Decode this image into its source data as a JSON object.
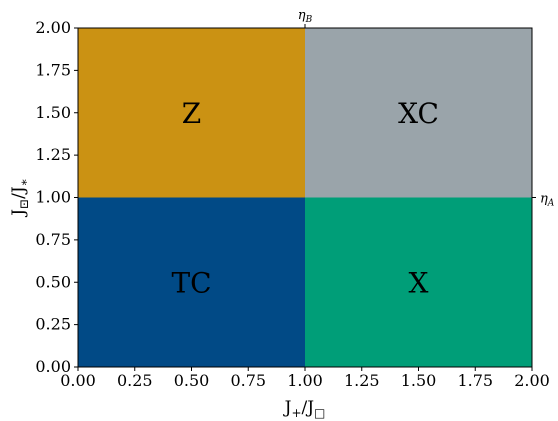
{
  "chart_data": {
    "type": "heatmap",
    "xlabel": "J+/J□",
    "ylabel": "J⊡/J∗",
    "xlim": [
      0,
      2
    ],
    "ylim": [
      0,
      2
    ],
    "xticks": [
      "0.00",
      "0.25",
      "0.50",
      "0.75",
      "1.00",
      "1.25",
      "1.50",
      "1.75",
      "2.00"
    ],
    "yticks": [
      "0.00",
      "0.25",
      "0.50",
      "0.75",
      "1.00",
      "1.25",
      "1.50",
      "1.75",
      "2.00"
    ],
    "grid": false,
    "regions": [
      {
        "label": "TC",
        "x": [
          0,
          1
        ],
        "y": [
          0,
          1
        ],
        "color": "#014a86"
      },
      {
        "label": "X",
        "x": [
          1,
          2
        ],
        "y": [
          0,
          1
        ],
        "color": "#009e78"
      },
      {
        "label": "Z",
        "x": [
          0,
          1
        ],
        "y": [
          1,
          2
        ],
        "color": "#cb9213"
      },
      {
        "label": "XC",
        "x": [
          1,
          2
        ],
        "y": [
          1,
          2
        ],
        "color": "#9aa4aa"
      }
    ],
    "annotations": [
      {
        "text": "ηB",
        "axis": "top",
        "at": 1.0
      },
      {
        "text": "ηA",
        "axis": "right",
        "at": 1.0
      }
    ]
  }
}
